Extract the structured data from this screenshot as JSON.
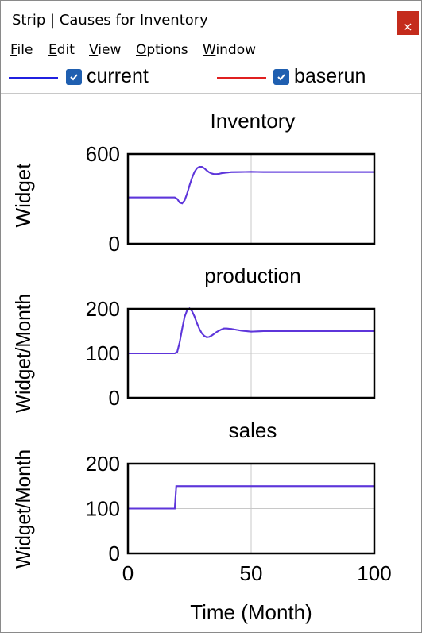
{
  "window": {
    "title": "Strip | Causes for Inventory",
    "close_label": "×"
  },
  "menu": {
    "items": [
      {
        "label": "File",
        "accel": "F",
        "rest": "ile"
      },
      {
        "label": "Edit",
        "accel": "E",
        "rest": "dit"
      },
      {
        "label": "View",
        "accel": "V",
        "rest": "iew"
      },
      {
        "label": "Options",
        "accel": "O",
        "rest": "ptions"
      },
      {
        "label": "Window",
        "accel": "W",
        "rest": "indow"
      }
    ]
  },
  "legend": {
    "items": [
      {
        "name": "current",
        "color": "#2020e0",
        "checked": true
      },
      {
        "name": "baserun",
        "color": "#e02020",
        "checked": true
      }
    ]
  },
  "colors": {
    "overlap_line": "#7b3ad6",
    "grid": "#c8c8c8",
    "checkbox": "#1f5fb0",
    "close": "#c42b1c"
  },
  "chart_data": [
    {
      "type": "line",
      "title": "Inventory",
      "ylabel": "Widget",
      "xlim": [
        0,
        100
      ],
      "ylim": [
        0,
        600
      ],
      "yticks": [
        "600",
        "0"
      ],
      "x": [
        0,
        19,
        20,
        21,
        22,
        23,
        24,
        25,
        26,
        27,
        28,
        29,
        30,
        31,
        32,
        33,
        34,
        35,
        36,
        37,
        38,
        40,
        42,
        45,
        50,
        55,
        60,
        70,
        80,
        90,
        100
      ],
      "series": [
        {
          "name": "current",
          "values": [
            310,
            310,
            300,
            275,
            270,
            290,
            335,
            390,
            440,
            480,
            505,
            515,
            515,
            505,
            490,
            478,
            470,
            466,
            466,
            468,
            472,
            476,
            479,
            480,
            481,
            480,
            480,
            480,
            480,
            480,
            480
          ]
        },
        {
          "name": "baserun",
          "values": [
            310,
            310,
            300,
            275,
            270,
            290,
            335,
            390,
            440,
            480,
            505,
            515,
            515,
            505,
            490,
            478,
            470,
            466,
            466,
            468,
            472,
            476,
            479,
            480,
            481,
            480,
            480,
            480,
            480,
            480,
            480
          ]
        }
      ]
    },
    {
      "type": "line",
      "title": "production",
      "ylabel": "Widget/Month",
      "xlim": [
        0,
        100
      ],
      "ylim": [
        0,
        200
      ],
      "yticks": [
        "200",
        "100",
        "0"
      ],
      "x": [
        0,
        19,
        20,
        21,
        22,
        23,
        24,
        25,
        26,
        27,
        28,
        29,
        30,
        31,
        32,
        33,
        34,
        35,
        36,
        37,
        38,
        39,
        40,
        42,
        44,
        46,
        48,
        50,
        55,
        60,
        70,
        80,
        90,
        100
      ],
      "series": [
        {
          "name": "current",
          "values": [
            100,
            100,
            103,
            125,
            155,
            182,
            197,
            201,
            195,
            183,
            168,
            155,
            145,
            139,
            136,
            137,
            140,
            144,
            148,
            151,
            154,
            156,
            156,
            155,
            153,
            151,
            150,
            149,
            150,
            150,
            150,
            150,
            150,
            150
          ]
        },
        {
          "name": "baserun",
          "values": [
            100,
            100,
            103,
            125,
            155,
            182,
            197,
            201,
            195,
            183,
            168,
            155,
            145,
            139,
            136,
            137,
            140,
            144,
            148,
            151,
            154,
            156,
            156,
            155,
            153,
            151,
            150,
            149,
            150,
            150,
            150,
            150,
            150,
            150
          ]
        }
      ]
    },
    {
      "type": "line",
      "title": "sales",
      "ylabel": "Widget/Month",
      "xlim": [
        0,
        100
      ],
      "ylim": [
        0,
        200
      ],
      "yticks": [
        "200",
        "100",
        "0"
      ],
      "xticks": [
        "0",
        "50",
        "100"
      ],
      "xlabel": "Time (Month)",
      "x": [
        0,
        19,
        19.6,
        100
      ],
      "series": [
        {
          "name": "current",
          "values": [
            100,
            100,
            150,
            150
          ]
        },
        {
          "name": "baserun",
          "values": [
            100,
            100,
            150,
            150
          ]
        }
      ]
    }
  ]
}
